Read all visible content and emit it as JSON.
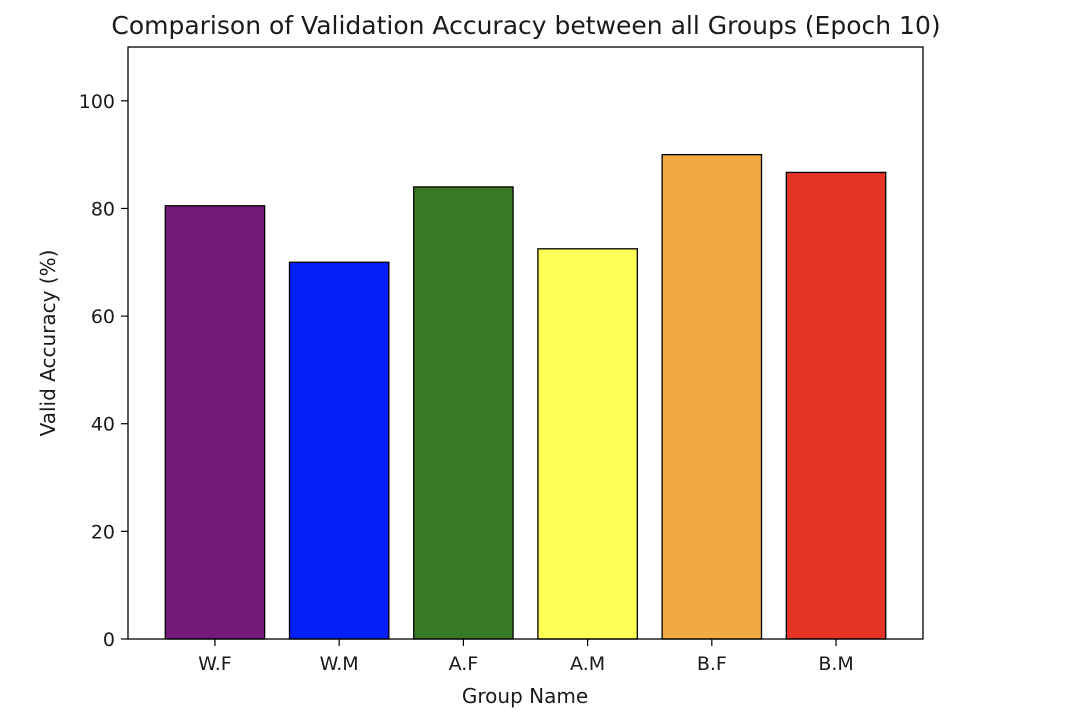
{
  "chart_data": {
    "type": "bar",
    "title": "Comparison of Validation Accuracy between all Groups (Epoch 10)",
    "xlabel": "Group Name",
    "ylabel": "Valid Accuracy (%)",
    "categories": [
      "W.F",
      "W.M",
      "A.F",
      "A.M",
      "B.F",
      "B.M"
    ],
    "values": [
      80.5,
      70.0,
      84.0,
      72.5,
      90.0,
      86.7
    ],
    "colors": [
      "#731A78",
      "#0320FB",
      "#387A26",
      "#FFFF55",
      "#F1A941",
      "#E53424"
    ],
    "ylim": [
      0,
      110
    ],
    "yticks": [
      0,
      20,
      40,
      60,
      80,
      100
    ],
    "grid": false,
    "legend": "none"
  }
}
